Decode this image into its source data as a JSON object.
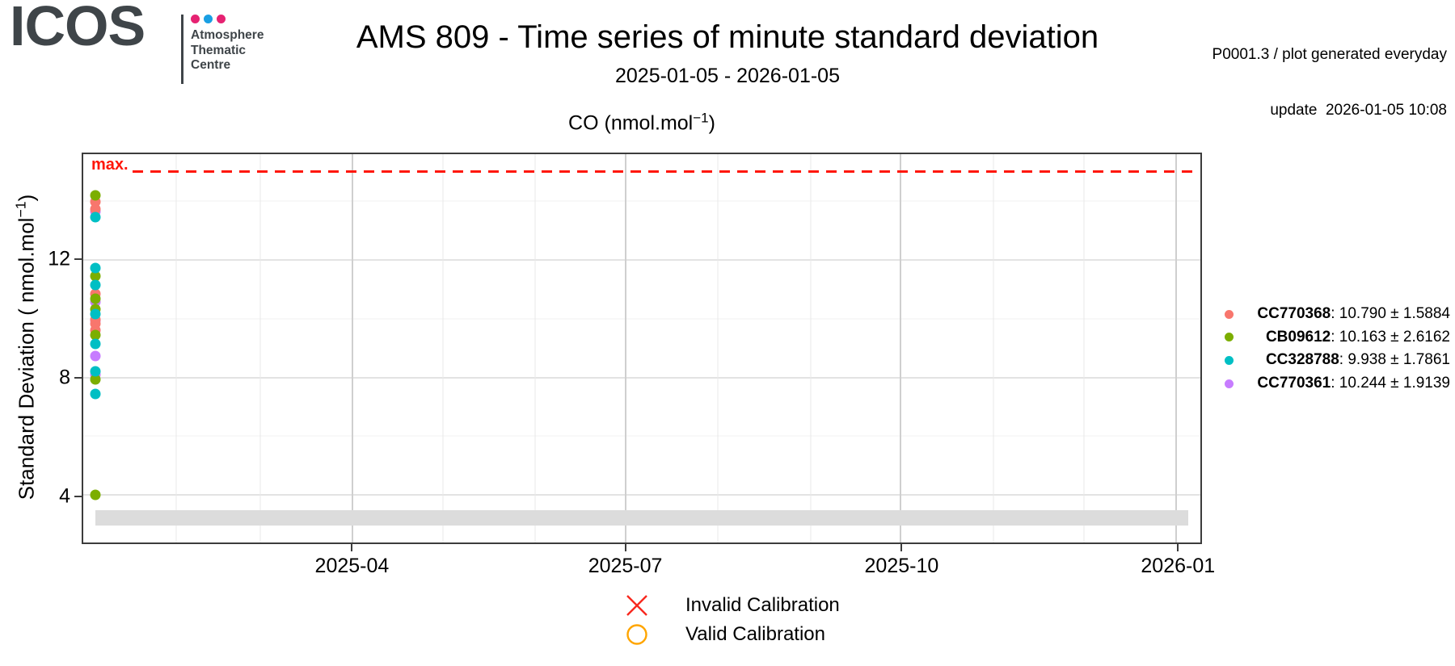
{
  "header": {
    "logo": {
      "name": "ICOS",
      "dot_colors": [
        "#e62272",
        "#199fe3",
        "#e62272"
      ],
      "org_lines": [
        "Atmosphere",
        "Thematic",
        "Centre"
      ]
    },
    "title": "AMS 809 - Time series of minute standard deviation",
    "subtitle": "2025-01-05 - 2026-01-05",
    "info": {
      "line1": "P0001.3 / plot generated everyday",
      "line2": "update  2026-01-05 10:08"
    }
  },
  "chart_data": {
    "type": "scatter",
    "title_parts": {
      "prefix": "CO (nmol.mol",
      "sup": "−1",
      "suffix": ")"
    },
    "ylabel_parts": {
      "prefix": "Standard Deviation ( nmol.mol",
      "sup": "−1",
      "suffix": ")"
    },
    "x_domain": [
      "2025-01-01",
      "2026-01-09"
    ],
    "x_major_ticks": [
      {
        "date": "2025-04-01",
        "label": "2025-04"
      },
      {
        "date": "2025-07-01",
        "label": "2025-07"
      },
      {
        "date": "2025-10-01",
        "label": "2025-10"
      },
      {
        "date": "2026-01-01",
        "label": "2026-01"
      }
    ],
    "x_minor_gridline_dates": [
      "2025-02-01",
      "2025-03-01",
      "2025-05-01",
      "2025-06-01",
      "2025-08-01",
      "2025-09-01",
      "2025-11-01",
      "2025-12-01"
    ],
    "y_domain": [
      2.39,
      15.59
    ],
    "y_major_ticks": [
      4,
      8,
      12
    ],
    "y_minor_gridlines": [
      6,
      10,
      14
    ],
    "max_line": {
      "label": "max.",
      "value": 15.0,
      "color": "#ff1607"
    },
    "flag_band": {
      "x_start": "2025-01-05",
      "x_end": "2026-01-05",
      "y_bottom": 2.96,
      "y_top": 3.48,
      "color": "#dcdcdc"
    },
    "points_date": "2025-01-05",
    "series": [
      {
        "id": "CC770368",
        "color": "#F8766D",
        "mean": "10.790",
        "sd": "1.5884",
        "values": [
          13.97,
          13.72,
          10.85,
          9.97,
          9.84,
          9.62
        ]
      },
      {
        "id": "CB09612",
        "color": "#7CAE00",
        "mean": "10.163",
        "sd": "2.6162",
        "values": [
          14.19,
          11.45,
          10.69,
          10.31,
          9.43,
          7.93,
          4.0
        ]
      },
      {
        "id": "CC328788",
        "color": "#00BFC4",
        "mean": "9.938",
        "sd": "1.7861",
        "values": [
          13.45,
          11.73,
          11.15,
          10.17,
          9.13,
          8.2,
          7.44
        ]
      },
      {
        "id": "CC770361",
        "color": "#C77CFF",
        "mean": "10.244",
        "sd": "1.9139",
        "values": [
          13.64,
          10.58,
          9.93,
          8.72,
          8.09
        ]
      }
    ],
    "draw_order": [
      3,
      0,
      1,
      2
    ],
    "id_separator": ": ",
    "plus_minus": " ± "
  },
  "calibration_legend": {
    "invalid": {
      "label": "Invalid Calibration",
      "color": "#f8281e"
    },
    "valid": {
      "label": "Valid Calibration",
      "color": "#FFA500"
    }
  }
}
